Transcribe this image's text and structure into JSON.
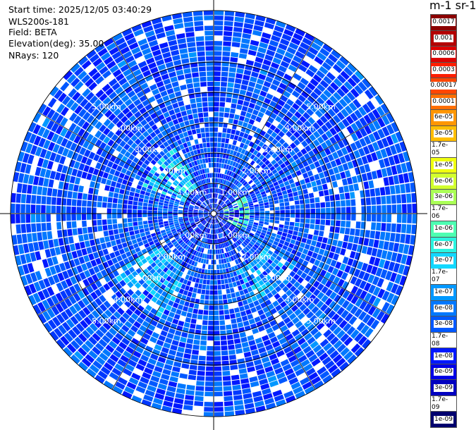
{
  "info": {
    "start_time": "Start time: 2025/12/05 03:40:29",
    "instrument": "WLS200s-181",
    "field": "Field: BETA",
    "elevation": "Elevation(deg): 35.00",
    "nrays": "NRays: 120"
  },
  "colorbar": {
    "title": "m-1 sr-1",
    "labels": [
      "0.0017",
      "0.001",
      "0.0006",
      "0.0003",
      "0.00017",
      "0.0001",
      "6e-05",
      "3e-05",
      "1.7e-05",
      "1e-05",
      "6e-06",
      "3e-06",
      "1.7e-06",
      "1e-06",
      "6e-07",
      "3e-07",
      "1.7e-07",
      "1e-07",
      "6e-08",
      "3e-08",
      "1.7e-08",
      "1e-08",
      "6e-09",
      "3e-09",
      "1.7e-09",
      "1e-09"
    ],
    "colors": [
      "#8b0000",
      "#b40000",
      "#dc0000",
      "#ff1e00",
      "#ff4600",
      "#ff6e00",
      "#ff9600",
      "#ffbe00",
      "#ffe600",
      "#f0ff10",
      "#d2ff2e",
      "#aaff56",
      "#78ff88",
      "#4dffb2",
      "#2bf4e0",
      "#12d8ff",
      "#00b8ff",
      "#0098ff",
      "#0078ff",
      "#0058ff",
      "#0038ff",
      "#0018ff",
      "#0000e6",
      "#0000c0",
      "#000096",
      "#00006e"
    ]
  },
  "chart_data": {
    "type": "heatmap",
    "projection": "polar-ppi",
    "field": "BETA",
    "units": "m-1 sr-1",
    "elevation_deg": 35.0,
    "nrays": 120,
    "range_rings_km": [
      1,
      2,
      3,
      4,
      5
    ],
    "ring_labels": [
      "1.00km",
      "2.00km",
      "3.00km",
      "4.00km",
      "5.00km"
    ],
    "max_range_km": 6.7,
    "value_range": [
      1e-09,
      0.0017
    ],
    "color_scale": "log",
    "dominant_value": 3e-08,
    "enhanced_regions": [
      {
        "azimuth_deg": [
          290,
          330
        ],
        "range_km": [
          1.0,
          2.6
        ],
        "value": 3e-07
      },
      {
        "azimuth_deg": [
          205,
          240
        ],
        "range_km": [
          2.0,
          3.8
        ],
        "value": 1.7e-07
      },
      {
        "azimuth_deg": [
          60,
          120
        ],
        "range_km": [
          0.3,
          1.2
        ],
        "value": 1e-06
      },
      {
        "azimuth_deg": [
          120,
          160
        ],
        "range_km": [
          2.0,
          3.2
        ],
        "value": 1.7e-07
      }
    ]
  }
}
